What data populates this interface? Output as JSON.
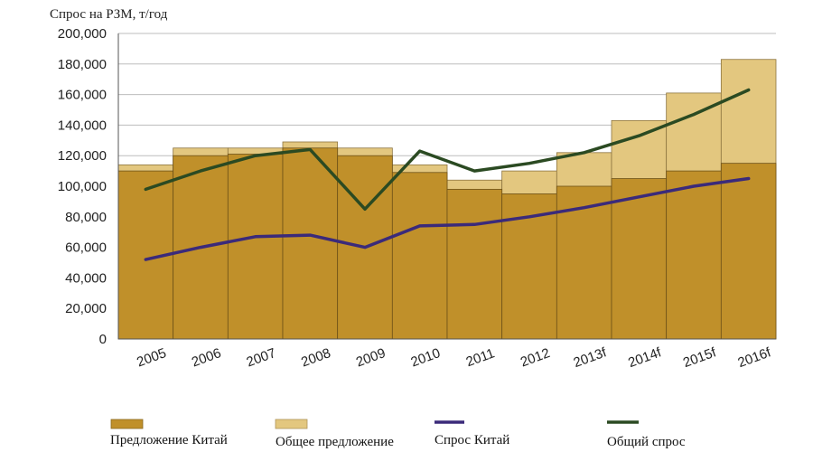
{
  "chart_data": {
    "type": "bar",
    "title": "",
    "ylabel": "Спрос на РЗМ, т/год",
    "xlabel": "",
    "ylim": [
      0,
      200000
    ],
    "yticks": [
      0,
      20000,
      40000,
      60000,
      80000,
      100000,
      120000,
      140000,
      160000,
      180000,
      200000
    ],
    "ytick_labels": [
      "0",
      "20,000",
      "40,000",
      "60,000",
      "80,000",
      "100,000",
      "120,000",
      "140,000",
      "160,000",
      "180,000",
      "200,000"
    ],
    "categories": [
      "2005",
      "2006",
      "2007",
      "2008",
      "2009",
      "2010",
      "2011",
      "2012",
      "2013f",
      "2014f",
      "2015f",
      "2016f"
    ],
    "bar_series": [
      {
        "name": "Предложение Китай",
        "color": "#c0902a",
        "values": [
          110000,
          120000,
          121000,
          125000,
          120000,
          109000,
          98000,
          95000,
          100000,
          105000,
          110000,
          115000
        ]
      },
      {
        "name": "Общее предложение",
        "color": "#e3c77f",
        "values": [
          114000,
          125000,
          125000,
          129000,
          125000,
          114000,
          104000,
          110000,
          122000,
          143000,
          161000,
          183000
        ]
      }
    ],
    "line_series": [
      {
        "name": "Спрос Китай",
        "color": "#3b2a7a",
        "values": [
          52000,
          60000,
          67000,
          68000,
          60000,
          74000,
          75000,
          80000,
          86000,
          93000,
          100000,
          105000
        ]
      },
      {
        "name": "Общий спрос",
        "color": "#2b4a22",
        "values": [
          98000,
          110000,
          120000,
          124000,
          85000,
          123000,
          110000,
          115000,
          122000,
          133000,
          147000,
          163000
        ]
      }
    ],
    "grid": true,
    "legend_position": "bottom"
  }
}
